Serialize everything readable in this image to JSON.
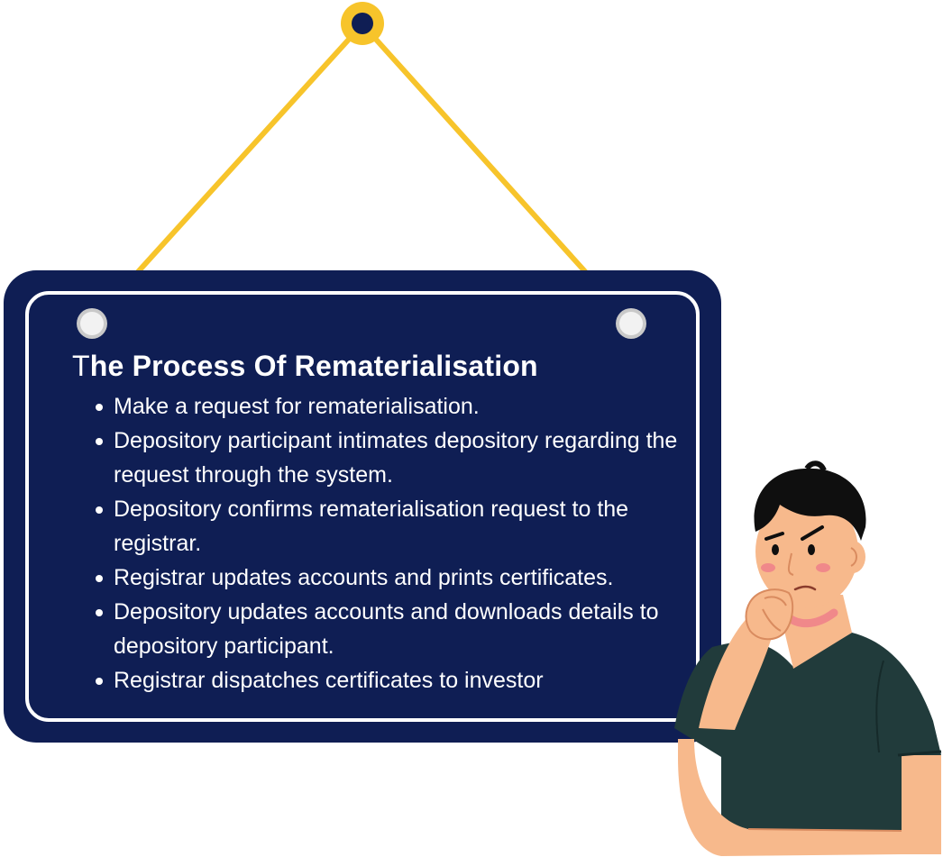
{
  "sign": {
    "title_first_letter": "T",
    "title_rest": "he Process Of Rematerialisation",
    "items": [
      "Make a request for rematerialisation.",
      "Depository participant intimates depository regarding the request through the system.",
      "Depository confirms rematerialisation request to the registrar.",
      "Registrar updates accounts and prints certificates.",
      "Depository updates accounts and downloads details to depository participant.",
      "Registrar dispatches certificates to investor"
    ]
  },
  "colors": {
    "board": "#0f1e54",
    "rope": "#f7c42b",
    "frame": "#ffffff",
    "skin": "#f7b98c",
    "shirt": "#213b3b",
    "hair": "#0f0f0f",
    "blush": "#f0888a"
  },
  "icons": {
    "hook": "hook-icon",
    "screw": "screw-icon",
    "character": "thinking-person-illustration"
  }
}
